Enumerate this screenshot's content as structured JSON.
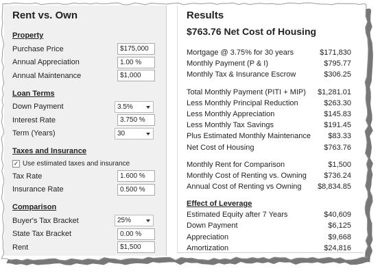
{
  "left": {
    "title": "Rent vs. Own",
    "sections": [
      {
        "heading": "Property",
        "fields": [
          {
            "label": "Purchase Price",
            "value": "$175,000"
          },
          {
            "label": "Annual Appreciation",
            "value": "1.00 %"
          },
          {
            "label": "Annual Maintenance",
            "value": "$1,000"
          }
        ]
      },
      {
        "heading": "Loan Terms",
        "fields": [
          {
            "label": "Down Payment",
            "value": "3.5%",
            "dropdown": true
          },
          {
            "label": "Interest Rate",
            "value": "3.750 %"
          },
          {
            "label": "Term (Years)",
            "value": "30",
            "dropdown": true
          }
        ]
      },
      {
        "heading": "Taxes and Insurance",
        "checkbox": {
          "label": "Use estimated taxes and insurance",
          "checked": true
        },
        "fields": [
          {
            "label": "Tax Rate",
            "value": "1.600 %"
          },
          {
            "label": "Insurance Rate",
            "value": "0.500 %"
          }
        ]
      },
      {
        "heading": "Comparison",
        "fields": [
          {
            "label": "Buyer's Tax Bracket",
            "value": "25%",
            "dropdown": true
          },
          {
            "label": "State Tax Bracket",
            "value": "0.00 %"
          },
          {
            "label": "Rent",
            "value": "$1,500"
          }
        ]
      }
    ]
  },
  "results": {
    "title": "Results",
    "headline": "$763.76 Net Cost of Housing",
    "groups": [
      {
        "rows": [
          {
            "label": "Mortgage @ 3.75% for 30 years",
            "value": "$171,830"
          },
          {
            "label": "Monthly Payment (P & I)",
            "value": "$795.77"
          },
          {
            "label": "Monthly Tax & Insurance Escrow",
            "value": "$306.25"
          }
        ]
      },
      {
        "rows": [
          {
            "label": "Total Monthly Payment (PITI + MIP)",
            "value": "$1,281.01"
          },
          {
            "label": "Less Monthly Principal Reduction",
            "value": "$263.30"
          },
          {
            "label": "Less Monthly Appreciation",
            "value": "$145.83"
          },
          {
            "label": "Less Monthly Tax Savings",
            "value": "$191.45"
          },
          {
            "label": "Plus Estimated Monthly Maintenance",
            "value": "$83.33"
          },
          {
            "label": "Net Cost of Housing",
            "value": "$763.76"
          }
        ]
      },
      {
        "rows": [
          {
            "label": "Monthly Rent for Comparison",
            "value": "$1,500"
          },
          {
            "label": "Monthly Cost of Renting vs. Owning",
            "value": "$736.24"
          },
          {
            "label": "Annual Cost of Renting vs Owning",
            "value": "$8,834.85"
          }
        ]
      },
      {
        "heading": "Effect of Leverage",
        "rows": [
          {
            "label": "Estimated Equity after 7 Years",
            "value": "$40,609"
          },
          {
            "label": "Down Payment",
            "value": "$6,125"
          },
          {
            "label": "Appreciation",
            "value": "$9,668"
          },
          {
            "label": "Amortization",
            "value": "$24,816"
          }
        ]
      }
    ]
  }
}
